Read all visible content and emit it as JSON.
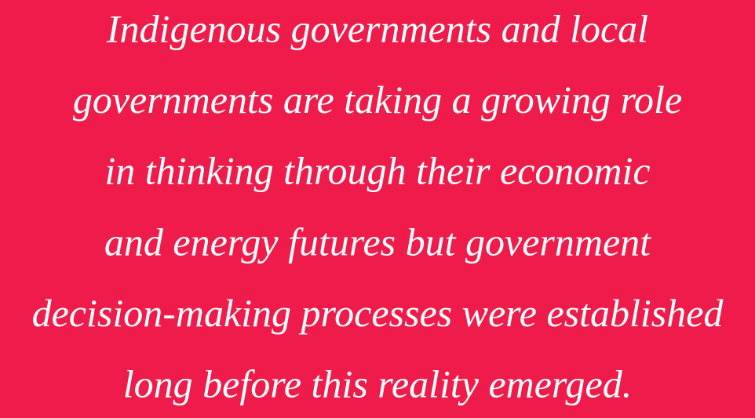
{
  "quote": {
    "lines": [
      "Indigenous governments and local",
      "governments are taking a growing role",
      "in thinking through their economic",
      "and energy futures but government",
      "decision-making processes were established",
      "long before this reality emerged."
    ]
  }
}
